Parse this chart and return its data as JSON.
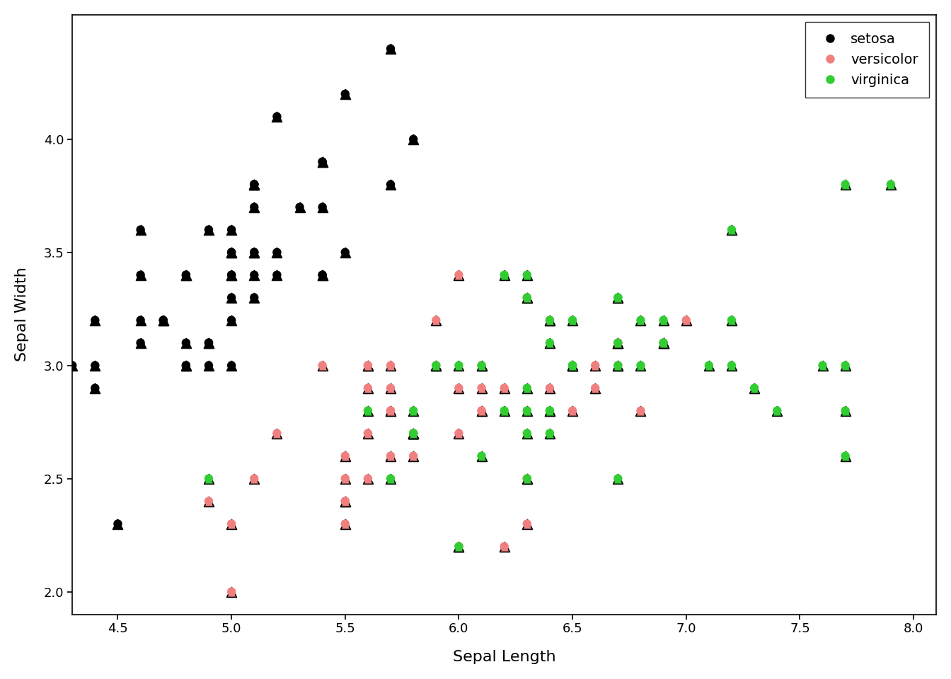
{
  "title": "",
  "xlabel": "Sepal Length",
  "ylabel": "Sepal Width",
  "xlim": [
    4.3,
    8.1
  ],
  "ylim": [
    1.9,
    4.55
  ],
  "xticks": [
    4.5,
    5.0,
    5.5,
    6.0,
    6.5,
    7.0,
    7.5,
    8.0
  ],
  "yticks": [
    2.0,
    2.5,
    3.0,
    3.5,
    4.0
  ],
  "background_color": "#ffffff",
  "legend_loc": "upper right",
  "species_colors": {
    "setosa": "#000000",
    "versicolor": "#f08080",
    "virginica": "#32cd32"
  },
  "setosa": {
    "sepal_length": [
      5.1,
      4.9,
      4.7,
      4.6,
      5.0,
      5.4,
      4.6,
      5.0,
      4.4,
      4.9,
      5.4,
      4.8,
      4.8,
      4.3,
      5.8,
      5.7,
      5.4,
      5.1,
      5.7,
      5.1,
      5.4,
      5.1,
      4.6,
      5.1,
      4.8,
      5.0,
      5.0,
      5.2,
      5.2,
      4.7,
      4.8,
      5.4,
      5.2,
      5.5,
      4.9,
      5.0,
      5.5,
      4.9,
      4.4,
      5.1,
      5.0,
      4.5,
      4.4,
      5.0,
      5.1,
      4.8,
      5.1,
      4.6,
      5.3,
      5.0
    ],
    "sepal_width": [
      3.5,
      3.0,
      3.2,
      3.1,
      3.6,
      3.9,
      3.4,
      3.4,
      2.9,
      3.1,
      3.7,
      3.4,
      3.0,
      3.0,
      4.0,
      4.4,
      3.9,
      3.5,
      3.8,
      3.8,
      3.4,
      3.7,
      3.6,
      3.3,
      3.4,
      3.0,
      3.4,
      3.5,
      3.4,
      3.2,
      3.1,
      3.4,
      4.1,
      4.2,
      3.1,
      3.2,
      3.5,
      3.6,
      3.0,
      3.4,
      3.5,
      2.3,
      3.2,
      3.5,
      3.8,
      3.0,
      3.8,
      3.2,
      3.7,
      3.3
    ]
  },
  "versicolor": {
    "sepal_length": [
      7.0,
      6.4,
      6.9,
      5.5,
      6.5,
      5.7,
      6.3,
      4.9,
      6.6,
      5.2,
      5.0,
      5.9,
      6.0,
      6.1,
      5.6,
      6.7,
      5.6,
      5.8,
      6.2,
      5.6,
      5.9,
      6.1,
      6.3,
      6.1,
      6.4,
      6.6,
      6.8,
      6.7,
      6.0,
      5.7,
      5.5,
      5.5,
      5.8,
      6.0,
      5.4,
      6.0,
      6.7,
      6.3,
      5.6,
      5.5,
      5.5,
      6.1,
      5.8,
      5.0,
      5.6,
      5.7,
      5.7,
      6.2,
      5.1,
      5.7
    ],
    "sepal_width": [
      3.2,
      3.2,
      3.1,
      2.3,
      2.8,
      2.8,
      3.3,
      2.4,
      2.9,
      2.7,
      2.0,
      3.0,
      2.2,
      2.9,
      2.9,
      3.1,
      3.0,
      2.7,
      2.2,
      2.5,
      3.2,
      2.8,
      2.5,
      2.8,
      2.9,
      3.0,
      2.8,
      3.0,
      2.9,
      2.6,
      2.4,
      2.4,
      2.7,
      2.7,
      3.0,
      3.4,
      3.1,
      2.3,
      3.0,
      2.5,
      2.6,
      3.0,
      2.6,
      2.3,
      2.7,
      3.0,
      2.9,
      2.9,
      2.5,
      2.8
    ]
  },
  "virginica": {
    "sepal_length": [
      6.3,
      5.8,
      7.1,
      6.3,
      6.5,
      7.6,
      4.9,
      7.3,
      6.7,
      7.2,
      6.5,
      6.4,
      6.8,
      5.7,
      5.8,
      6.4,
      6.5,
      7.7,
      7.7,
      6.0,
      6.9,
      5.6,
      7.7,
      6.3,
      6.7,
      7.2,
      6.2,
      6.1,
      6.4,
      7.2,
      7.4,
      7.9,
      6.4,
      6.3,
      6.1,
      7.7,
      6.3,
      6.4,
      6.0,
      6.9,
      6.7,
      6.9,
      5.8,
      6.8,
      6.7,
      6.7,
      6.3,
      6.5,
      6.2,
      5.9
    ],
    "sepal_width": [
      3.3,
      2.7,
      3.0,
      2.9,
      3.0,
      3.0,
      2.5,
      2.9,
      2.5,
      3.6,
      3.2,
      2.7,
      3.0,
      2.5,
      2.8,
      3.2,
      3.0,
      3.8,
      2.6,
      2.2,
      3.2,
      2.8,
      2.8,
      2.7,
      3.3,
      3.2,
      2.8,
      3.0,
      2.8,
      3.0,
      2.8,
      3.8,
      2.8,
      2.8,
      2.6,
      3.0,
      3.4,
      3.1,
      3.0,
      3.1,
      3.1,
      3.1,
      2.7,
      3.2,
      3.3,
      3.0,
      2.5,
      3.0,
      3.4,
      3.0
    ]
  }
}
